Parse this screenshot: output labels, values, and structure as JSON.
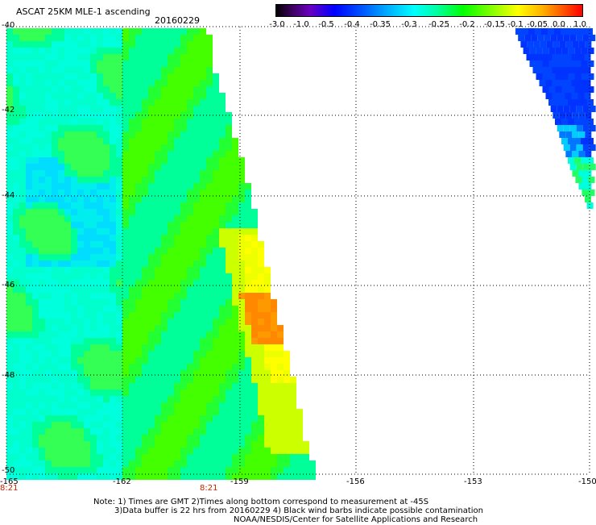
{
  "header": {
    "title": "ASCAT 25KM MLE-1 ascending",
    "date": "20160229"
  },
  "colorbar": {
    "labels": [
      "-3.0",
      "-1.0",
      "-0.5",
      "-0.4",
      "-0.35",
      "-0.3",
      "-0.25",
      "-0.2",
      "-0.15",
      "-0.1",
      "-0.05",
      "0.0",
      "1.0"
    ]
  },
  "axes": {
    "lat_labels": [
      "-40",
      "-42",
      "-44",
      "-46",
      "-48",
      "-50"
    ],
    "lon_labels": [
      "-165",
      "-162",
      "-159",
      "-156",
      "-153",
      "-150"
    ],
    "time_labels": [
      "8:21",
      "8:21"
    ]
  },
  "notes": {
    "line1": "Note: 1) Times are GMT 2)Times along bottom correspond to measurement at -45S",
    "line2": "3)Data buffer is 22 hrs from 20160229 4) Black wind barbs indicate possible contamination",
    "line3": "NOAA/NESDIS/Center for Satellite Applications and Research"
  },
  "colors": {
    "grid": "#000000",
    "time_label": "#cc2200"
  }
}
